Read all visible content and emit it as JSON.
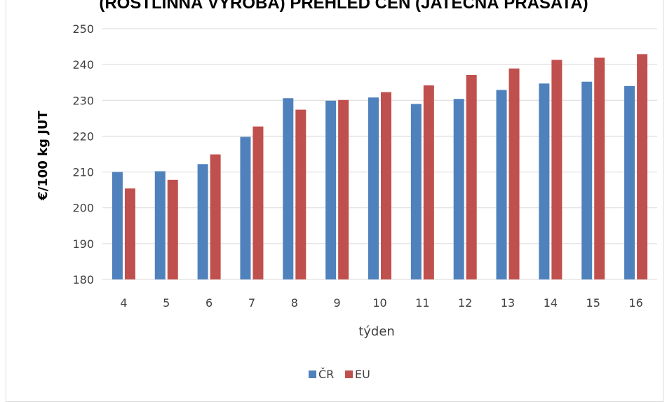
{
  "chart_data": {
    "type": "bar",
    "title": "(ROSTLINNÁ VÝROBA) PŘEHLED CEN (JATEČNÁ PRASATA)",
    "xlabel": "týden",
    "ylabel": "€/100 kg JUT",
    "ylim": [
      180,
      250
    ],
    "ytick_step": 10,
    "grid": true,
    "legend_position": "bottom",
    "categories": [
      "4",
      "5",
      "6",
      "7",
      "8",
      "9",
      "10",
      "11",
      "12",
      "13",
      "14",
      "15",
      "16"
    ],
    "series": [
      {
        "name": "ČR",
        "color": "#4f81bd",
        "values": [
          210.0,
          210.2,
          212.2,
          219.8,
          230.6,
          229.9,
          230.8,
          229.0,
          230.4,
          232.9,
          234.7,
          235.2,
          234.0
        ]
      },
      {
        "name": "EU",
        "color": "#c0504d",
        "values": [
          205.4,
          207.8,
          214.9,
          222.7,
          227.4,
          230.1,
          232.3,
          234.2,
          237.1,
          238.9,
          241.3,
          241.9,
          242.9
        ]
      }
    ]
  }
}
